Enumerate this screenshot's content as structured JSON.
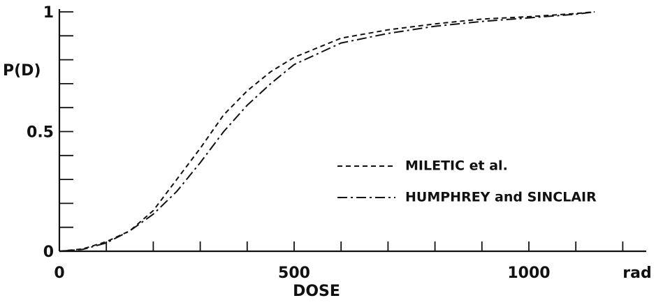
{
  "chart_data": {
    "type": "line",
    "xlabel": "DOSE",
    "xunit": "rad",
    "ylabel": "P(D)",
    "x": [
      0,
      50,
      100,
      150,
      200,
      250,
      300,
      350,
      400,
      450,
      500,
      600,
      700,
      800,
      900,
      1000,
      1100,
      1140
    ],
    "series": [
      {
        "name": "MILETIC et al.",
        "color": "#111111",
        "dash": "7 5",
        "values": [
          0,
          0.01,
          0.04,
          0.085,
          0.17,
          0.3,
          0.43,
          0.57,
          0.67,
          0.75,
          0.81,
          0.89,
          0.925,
          0.95,
          0.97,
          0.98,
          0.993,
          1
        ]
      },
      {
        "name": "HUMPHREY and SINCLAIR",
        "color": "#111111",
        "dash": "14 5 3 5",
        "values": [
          0,
          0.008,
          0.035,
          0.085,
          0.155,
          0.25,
          0.37,
          0.5,
          0.61,
          0.7,
          0.78,
          0.87,
          0.91,
          0.94,
          0.96,
          0.975,
          0.99,
          1
        ]
      }
    ],
    "xlim": [
      0,
      1250
    ],
    "ylim": [
      0,
      1
    ],
    "xticks": [
      0,
      500,
      1000
    ],
    "yticks": [
      0,
      0.5,
      1
    ],
    "xminor": [
      100,
      200,
      300,
      400,
      600,
      700,
      800,
      900,
      1100,
      1200
    ],
    "yminor": [
      0.1,
      0.2,
      0.3,
      0.4,
      0.6,
      0.7,
      0.8,
      0.9
    ]
  }
}
